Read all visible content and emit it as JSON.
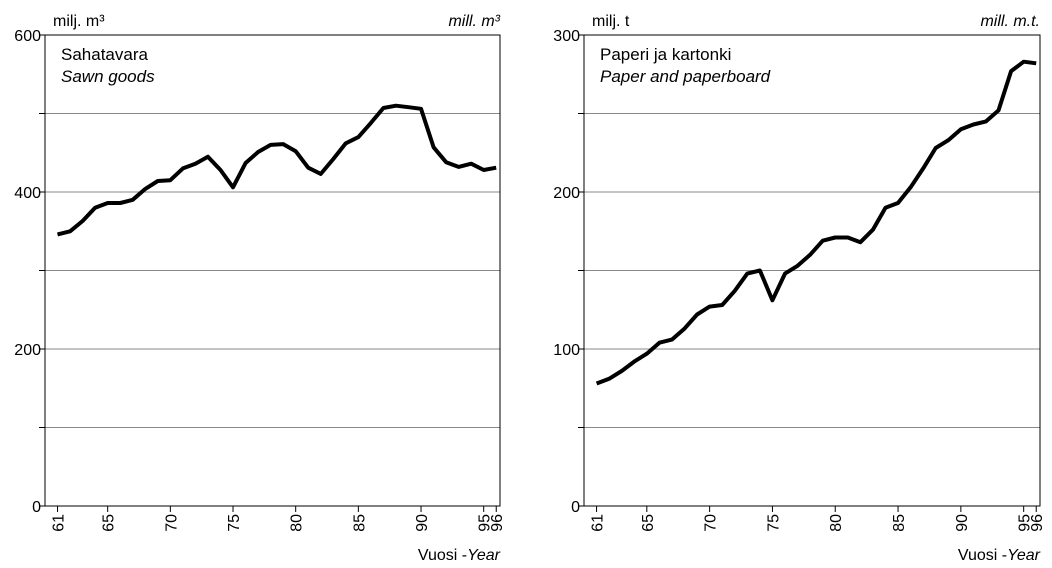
{
  "chart_data": [
    {
      "type": "line",
      "title": "Sahatavara",
      "subtitle": "Sawn goods",
      "ylabel": "milj. m³",
      "ylabel_en": "mill. m³",
      "xlabel": "Vuosi -",
      "xlabel_en": "Year",
      "x": [
        61,
        62,
        63,
        64,
        65,
        66,
        67,
        68,
        69,
        70,
        71,
        72,
        73,
        74,
        75,
        76,
        77,
        78,
        79,
        80,
        81,
        82,
        83,
        84,
        85,
        86,
        87,
        88,
        89,
        90,
        91,
        92,
        93,
        94,
        95,
        96
      ],
      "series": [
        {
          "color": "#000000",
          "values": [
            346,
            350,
            363,
            380,
            386,
            386,
            390,
            404,
            414,
            415,
            430,
            436,
            445,
            428,
            406,
            437,
            451,
            460,
            461,
            452,
            431,
            423,
            442,
            462,
            470,
            488,
            507,
            510,
            508,
            506,
            457,
            438,
            432,
            436,
            428,
            431
          ]
        }
      ],
      "xlim": [
        60,
        96.3
      ],
      "xticks": [
        61,
        65,
        70,
        75,
        80,
        85,
        90,
        95,
        96
      ],
      "ylim": [
        0,
        600
      ],
      "yticks": [
        0,
        200,
        400,
        600
      ],
      "minor_yticks": [
        100,
        300,
        500
      ],
      "grid": true
    },
    {
      "type": "line",
      "title": "Paperi ja kartonki",
      "subtitle": "Paper and paperboard",
      "ylabel": "milj. t",
      "ylabel_en": "mill. m.t.",
      "xlabel": "Vuosi -",
      "xlabel_en": "Year",
      "x": [
        61,
        62,
        63,
        64,
        65,
        66,
        67,
        68,
        69,
        70,
        71,
        72,
        73,
        74,
        75,
        76,
        77,
        78,
        79,
        80,
        81,
        82,
        83,
        84,
        85,
        86,
        87,
        88,
        89,
        90,
        91,
        92,
        93,
        94,
        95,
        96
      ],
      "series": [
        {
          "color": "#000000",
          "values": [
            78,
            81,
            86,
            92,
            97,
            104,
            106,
            113,
            122,
            127,
            128,
            137,
            148,
            150,
            131,
            148,
            153,
            160,
            169,
            171,
            171,
            168,
            176,
            190,
            193,
            203,
            215,
            228,
            233,
            240,
            243,
            245,
            252,
            277,
            283,
            282
          ]
        }
      ],
      "xlim": [
        60,
        96.3
      ],
      "xticks": [
        61,
        65,
        70,
        75,
        80,
        85,
        90,
        95,
        96
      ],
      "ylim": [
        0,
        300
      ],
      "yticks": [
        0,
        100,
        200,
        300
      ],
      "minor_yticks": [
        50,
        150,
        250
      ],
      "grid": true
    }
  ]
}
